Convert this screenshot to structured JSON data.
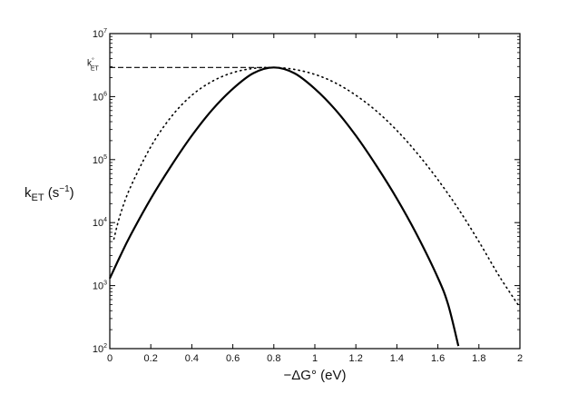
{
  "chart_data": {
    "type": "line",
    "title": "",
    "xlabel": "−ΔG° (eV)",
    "ylabel": {
      "main": "k",
      "sub": "ET",
      "units_open": " (s",
      "units_exp": "−1",
      "units_close": ")"
    },
    "xlim": [
      0,
      2
    ],
    "ylim": [
      100,
      10000000
    ],
    "yscale": "log",
    "grid": false,
    "legend": "none",
    "x_ticks": [
      {
        "value": 0,
        "label": "0"
      },
      {
        "value": 0.2,
        "label": "0.2"
      },
      {
        "value": 0.4,
        "label": "0.4"
      },
      {
        "value": 0.6,
        "label": "0.6"
      },
      {
        "value": 0.8,
        "label": "0.8"
      },
      {
        "value": 1.0,
        "label": "1"
      },
      {
        "value": 1.2,
        "label": "1.2"
      },
      {
        "value": 1.4,
        "label": "1.4"
      },
      {
        "value": 1.6,
        "label": "1.6"
      },
      {
        "value": 1.8,
        "label": "1.8"
      },
      {
        "value": 2.0,
        "label": "2"
      }
    ],
    "y_ticks": [
      {
        "value": 100,
        "base": "10",
        "exp": "2"
      },
      {
        "value": 1000,
        "base": "10",
        "exp": "3"
      },
      {
        "value": 10000,
        "base": "10",
        "exp": "4"
      },
      {
        "value": 100000,
        "base": "10",
        "exp": "5"
      },
      {
        "value": 1000000,
        "base": "10",
        "exp": "6"
      },
      {
        "value": 10000000,
        "base": "10",
        "exp": "7"
      }
    ],
    "annotation": {
      "main": "k",
      "sup": "°",
      "sub": "ET",
      "y_value": 2900000,
      "x_end": 0.8
    },
    "series": [
      {
        "style": "solid",
        "color": "#000000",
        "x": [
          0,
          0.05,
          0.1,
          0.2,
          0.3,
          0.4,
          0.5,
          0.6,
          0.7,
          0.8,
          0.9,
          1.0,
          1.1,
          1.2,
          1.3,
          1.4,
          1.5,
          1.6,
          1.65,
          1.7
        ],
        "y": [
          1300,
          2900,
          6200,
          24000,
          80000,
          240000,
          620000,
          1330000,
          2350000,
          2900000,
          2350000,
          1330000,
          620000,
          240000,
          80000,
          24000,
          6200,
          1330,
          500,
          110
        ]
      },
      {
        "style": "dotted",
        "color": "#000000",
        "x": [
          0.02,
          0.05,
          0.1,
          0.2,
          0.3,
          0.4,
          0.5,
          0.6,
          0.7,
          0.8,
          0.9,
          1.0,
          1.1,
          1.2,
          1.3,
          1.4,
          1.5,
          1.6,
          1.7,
          1.8,
          1.9,
          2.0
        ],
        "y": [
          5500,
          13000,
          36000,
          160000,
          480000,
          1050000,
          1750000,
          2400000,
          2800000,
          2900000,
          2700000,
          2250000,
          1650000,
          1050000,
          590000,
          290000,
          125000,
          48000,
          16500,
          5000,
          1400,
          450
        ]
      }
    ]
  }
}
